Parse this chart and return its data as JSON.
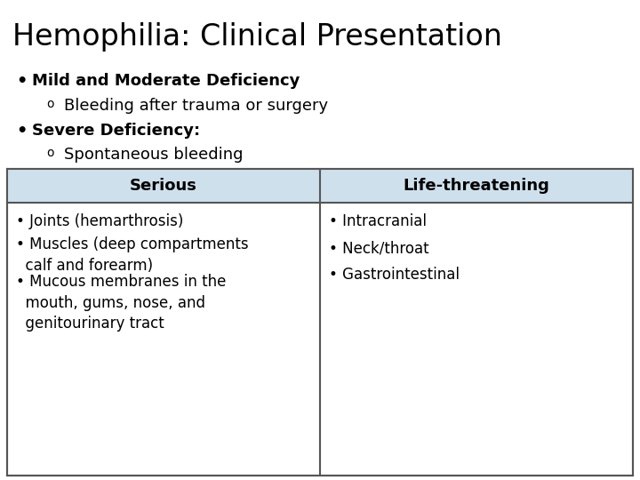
{
  "title": "Hemophilia: Clinical Presentation",
  "title_color": "#000000",
  "title_fontsize": 24,
  "header_bg": "#2e7d8c",
  "bg_color": "#ffffff",
  "bullet1_bold": "Mild and Moderate Deficiency",
  "bullet1_sub": "Bleeding after trauma or surgery",
  "bullet2_bold": "Severe Deficiency:",
  "bullet2_sub": "Spontaneous bleeding",
  "table_header_bg": "#cfe0ed",
  "table_border_color": "#555555",
  "table_header_left": "Serious",
  "table_header_right": "Life-threatening",
  "table_left_items": [
    "• Joints (hemarthrosis)",
    "• Muscles (deep compartments\n  calf and forearm)",
    "• Mucous membranes in the\n  mouth, gums, nose, and\n  genitourinary tract"
  ],
  "table_right_items": [
    "• Intracranial",
    "• Neck/throat",
    "• Gastrointestinal"
  ],
  "table_header_fontsize": 13,
  "table_cell_fontsize": 12,
  "body_fontsize": 13
}
